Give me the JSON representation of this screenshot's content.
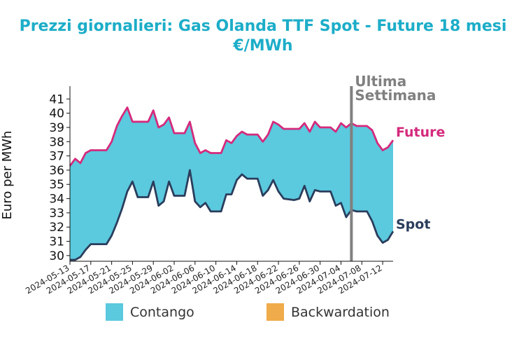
{
  "chart_data": {
    "type": "area",
    "title": "Prezzi giornalieri: Gas Olanda TTF Spot - Future 18 mesi",
    "subtitle": "€/MWh",
    "ylabel": "Euro per MWh",
    "xlabel": "",
    "ylim": [
      29.6,
      41.9
    ],
    "yticks": [
      30,
      31,
      32,
      33,
      34,
      35,
      36,
      37,
      38,
      39,
      40,
      41
    ],
    "xlim": [
      "2024-05-13",
      "2024-07-12"
    ],
    "xticks": [
      "2024-05-13",
      "2024-05-17",
      "2024-05-21",
      "2024-05-25",
      "2024-05-29",
      "2024-06-02",
      "2024-06-06",
      "2024-06-10",
      "2024-06-14",
      "2024-06-18",
      "2024-06-22",
      "2024-06-26",
      "2024-06-30",
      "2024-07-04",
      "2024-07-08",
      "2024-07-12"
    ],
    "grid": false,
    "legend_position": "bottom",
    "legend": [
      {
        "name": "Contango",
        "color": "#5bc9de"
      },
      {
        "name": "Backwardation",
        "color": "#f0ab4a"
      }
    ],
    "annotation": {
      "text_line1": "Ultima",
      "text_line2": "Settimana",
      "x": "2024-07-06",
      "color": "#808080"
    },
    "series": [
      {
        "name": "Future",
        "color": "#d42a7c",
        "points": [
          [
            "2024-05-13",
            36.3
          ],
          [
            "2024-05-14",
            36.8
          ],
          [
            "2024-05-15",
            36.5
          ],
          [
            "2024-05-16",
            37.2
          ],
          [
            "2024-05-17",
            37.4
          ],
          [
            "2024-05-20",
            37.4
          ],
          [
            "2024-05-21",
            38.0
          ],
          [
            "2024-05-22",
            39.1
          ],
          [
            "2024-05-23",
            39.8
          ],
          [
            "2024-05-24",
            40.4
          ],
          [
            "2024-05-25",
            39.4
          ],
          [
            "2024-05-27",
            39.4
          ],
          [
            "2024-05-28",
            39.4
          ],
          [
            "2024-05-29",
            40.2
          ],
          [
            "2024-05-30",
            39.0
          ],
          [
            "2024-05-31",
            39.2
          ],
          [
            "2024-06-01",
            39.7
          ],
          [
            "2024-06-02",
            38.6
          ],
          [
            "2024-06-04",
            38.6
          ],
          [
            "2024-06-05",
            39.4
          ],
          [
            "2024-06-06",
            37.9
          ],
          [
            "2024-06-07",
            37.2
          ],
          [
            "2024-06-08",
            37.4
          ],
          [
            "2024-06-09",
            37.2
          ],
          [
            "2024-06-11",
            37.2
          ],
          [
            "2024-06-12",
            38.1
          ],
          [
            "2024-06-13",
            37.9
          ],
          [
            "2024-06-14",
            38.4
          ],
          [
            "2024-06-15",
            38.7
          ],
          [
            "2024-06-16",
            38.5
          ],
          [
            "2024-06-18",
            38.5
          ],
          [
            "2024-06-19",
            38.0
          ],
          [
            "2024-06-20",
            38.5
          ],
          [
            "2024-06-21",
            39.4
          ],
          [
            "2024-06-22",
            39.2
          ],
          [
            "2024-06-23",
            38.9
          ],
          [
            "2024-06-26",
            38.9
          ],
          [
            "2024-06-27",
            39.3
          ],
          [
            "2024-06-28",
            38.7
          ],
          [
            "2024-06-29",
            39.4
          ],
          [
            "2024-06-30",
            39.0
          ],
          [
            "2024-07-02",
            39.0
          ],
          [
            "2024-07-03",
            38.7
          ],
          [
            "2024-07-04",
            39.3
          ],
          [
            "2024-07-05",
            39.0
          ],
          [
            "2024-07-06",
            39.3
          ],
          [
            "2024-07-07",
            39.1
          ],
          [
            "2024-07-09",
            39.1
          ],
          [
            "2024-07-10",
            38.8
          ],
          [
            "2024-07-11",
            37.9
          ],
          [
            "2024-07-12",
            37.4
          ],
          [
            "2024-07-13",
            37.6
          ],
          [
            "2024-07-14",
            38.1
          ]
        ]
      },
      {
        "name": "Spot",
        "color": "#2a3d5c",
        "points": [
          [
            "2024-05-13",
            29.7
          ],
          [
            "2024-05-14",
            29.7
          ],
          [
            "2024-05-15",
            29.9
          ],
          [
            "2024-05-16",
            30.4
          ],
          [
            "2024-05-17",
            30.8
          ],
          [
            "2024-05-19",
            30.8
          ],
          [
            "2024-05-20",
            30.8
          ],
          [
            "2024-05-21",
            31.4
          ],
          [
            "2024-05-22",
            32.3
          ],
          [
            "2024-05-23",
            33.3
          ],
          [
            "2024-05-24",
            34.5
          ],
          [
            "2024-05-25",
            35.2
          ],
          [
            "2024-05-26",
            34.1
          ],
          [
            "2024-05-28",
            34.1
          ],
          [
            "2024-05-29",
            35.2
          ],
          [
            "2024-05-30",
            33.5
          ],
          [
            "2024-05-31",
            33.8
          ],
          [
            "2024-06-01",
            35.2
          ],
          [
            "2024-06-02",
            34.2
          ],
          [
            "2024-06-04",
            34.2
          ],
          [
            "2024-06-05",
            36.0
          ],
          [
            "2024-06-06",
            33.8
          ],
          [
            "2024-06-07",
            33.4
          ],
          [
            "2024-06-08",
            33.7
          ],
          [
            "2024-06-09",
            33.1
          ],
          [
            "2024-06-11",
            33.1
          ],
          [
            "2024-06-12",
            34.3
          ],
          [
            "2024-06-13",
            34.3
          ],
          [
            "2024-06-14",
            35.3
          ],
          [
            "2024-06-15",
            35.7
          ],
          [
            "2024-06-16",
            35.4
          ],
          [
            "2024-06-18",
            35.4
          ],
          [
            "2024-06-19",
            34.2
          ],
          [
            "2024-06-20",
            34.6
          ],
          [
            "2024-06-21",
            35.3
          ],
          [
            "2024-06-22",
            34.5
          ],
          [
            "2024-06-23",
            34.0
          ],
          [
            "2024-06-25",
            33.9
          ],
          [
            "2024-06-26",
            34.0
          ],
          [
            "2024-06-27",
            34.9
          ],
          [
            "2024-06-28",
            33.8
          ],
          [
            "2024-06-29",
            34.6
          ],
          [
            "2024-06-30",
            34.5
          ],
          [
            "2024-07-02",
            34.5
          ],
          [
            "2024-07-03",
            33.5
          ],
          [
            "2024-07-04",
            33.7
          ],
          [
            "2024-07-05",
            32.7
          ],
          [
            "2024-07-06",
            33.2
          ],
          [
            "2024-07-07",
            33.1
          ],
          [
            "2024-07-09",
            33.1
          ],
          [
            "2024-07-10",
            32.4
          ],
          [
            "2024-07-11",
            31.4
          ],
          [
            "2024-07-12",
            30.9
          ],
          [
            "2024-07-13",
            31.1
          ],
          [
            "2024-07-14",
            31.7
          ]
        ]
      }
    ]
  }
}
